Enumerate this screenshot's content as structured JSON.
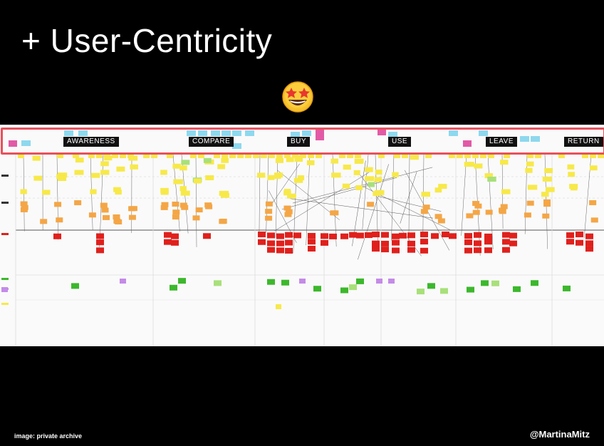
{
  "slide": {
    "title": "+ User-Centricity",
    "emoji": "star-struck-emoji"
  },
  "board": {
    "stages": [
      "AWARENESS",
      "COMPARE",
      "BUY",
      "USE",
      "LEAVE",
      "RETURN"
    ],
    "highlight_color": "#e8505b",
    "note_colors": {
      "yellow": "#f7e94a",
      "orange": "#f4a646",
      "red": "#e0201c",
      "green": "#3cb82c",
      "pink": "#e25aa6",
      "purple": "#c58be8",
      "light_blue": "#8ed8ee",
      "light_green": "#a8e07a"
    }
  },
  "footer": {
    "credit": "image: private archive",
    "handle": "@MartinaMitz"
  }
}
